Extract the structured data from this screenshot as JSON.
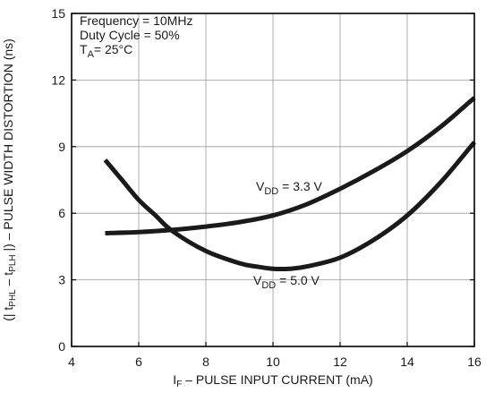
{
  "chart_data": {
    "type": "line",
    "xlabel": {
      "main": "I",
      "sub": "F",
      "rest": " – PULSE INPUT CURRENT (mA)"
    },
    "ylabel": {
      "p1": "(| t",
      "s1": "PHL",
      "p2": " – t",
      "s2": "PLH",
      "p3": " |) – PULSE WIDTH DISTORTION (ns)"
    },
    "xlim": [
      4,
      16
    ],
    "ylim": [
      0,
      15
    ],
    "x_ticks": [
      4,
      6,
      8,
      10,
      12,
      14,
      16
    ],
    "y_ticks": [
      0,
      3,
      6,
      9,
      12,
      15
    ],
    "grid": true,
    "conditions": {
      "line1": "Frequency = 10MHz",
      "line2": "Duty Cycle = 50%",
      "line3_main": "T",
      "line3_sub": "A",
      "line3_rest": "= 25°C"
    },
    "series": [
      {
        "name": "VDD = 3.3 V",
        "label_main": "V",
        "label_sub": "DD",
        "label_rest": " = 3.3 V",
        "x": [
          5.0,
          6.0,
          7.0,
          8.0,
          9.0,
          10.0,
          11.0,
          12.0,
          13.0,
          14.0,
          15.0,
          16.0
        ],
        "y": [
          5.1,
          5.15,
          5.25,
          5.4,
          5.6,
          5.9,
          6.4,
          7.1,
          7.9,
          8.8,
          9.9,
          11.2
        ]
      },
      {
        "name": "VDD = 5.0 V",
        "label_main": "V",
        "label_sub": "DD",
        "label_rest": " = 5.0 V",
        "x": [
          5.0,
          5.5,
          6.0,
          6.5,
          7.0,
          8.0,
          9.0,
          9.5,
          10.0,
          10.5,
          11.0,
          12.0,
          13.0,
          14.0,
          15.0,
          16.0
        ],
        "y": [
          8.4,
          7.5,
          6.6,
          5.9,
          5.2,
          4.3,
          3.75,
          3.6,
          3.5,
          3.5,
          3.6,
          4.0,
          4.8,
          5.9,
          7.4,
          9.2
        ]
      }
    ]
  }
}
